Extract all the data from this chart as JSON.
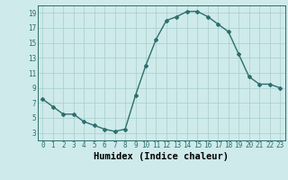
{
  "x": [
    0,
    1,
    2,
    3,
    4,
    5,
    6,
    7,
    8,
    9,
    10,
    11,
    12,
    13,
    14,
    15,
    16,
    17,
    18,
    19,
    20,
    21,
    22,
    23
  ],
  "y": [
    7.5,
    6.5,
    5.5,
    5.5,
    4.5,
    4.0,
    3.5,
    3.2,
    3.5,
    8.0,
    12.0,
    15.5,
    18.0,
    18.5,
    19.2,
    19.2,
    18.5,
    17.5,
    16.5,
    13.5,
    10.5,
    9.5,
    9.5,
    9.0
  ],
  "line_color": "#2e6e6e",
  "marker": "D",
  "marker_size": 2,
  "bg_color": "#ceeaea",
  "grid_color": "#aacccc",
  "xlabel": "Humidex (Indice chaleur)",
  "xlim": [
    -0.5,
    23.5
  ],
  "ylim": [
    2,
    20
  ],
  "yticks": [
    3,
    5,
    7,
    9,
    11,
    13,
    15,
    17,
    19
  ],
  "xticks": [
    0,
    1,
    2,
    3,
    4,
    5,
    6,
    7,
    8,
    9,
    10,
    11,
    12,
    13,
    14,
    15,
    16,
    17,
    18,
    19,
    20,
    21,
    22,
    23
  ],
  "tick_fontsize": 5.5,
  "label_fontsize": 7.5,
  "line_width": 1.0
}
